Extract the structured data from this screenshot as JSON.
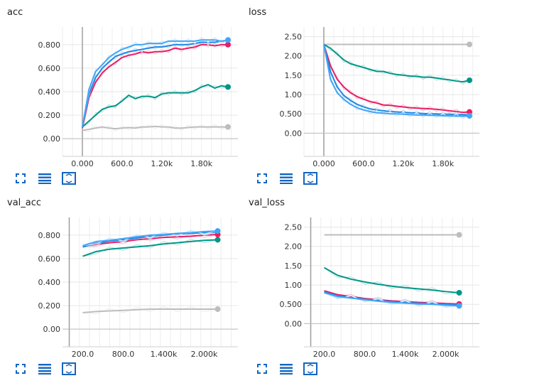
{
  "colors": {
    "teal": "#009688",
    "pink": "#e91e63",
    "blue_dark": "#1e88e5",
    "blue_mid": "#2196f3",
    "blue_light": "#42a5f5",
    "gray": "#bdbdbd",
    "tool_blue": "#1565c0"
  },
  "toolbar": {
    "expand_icon": "fullscreen-corners-icon",
    "data_icon": "list-lines-icon",
    "fit_icon": "fit-domain-icon"
  },
  "chart_data": [
    {
      "id": "acc",
      "type": "line",
      "title": "acc",
      "xlabel": "",
      "ylabel": "",
      "xlim": [
        -300,
        2350
      ],
      "ylim": [
        -0.15,
        0.95
      ],
      "xticks": [
        0,
        600,
        1200,
        1800
      ],
      "xtick_labels": [
        "0.000",
        "600.0",
        "1.20k",
        "1.80k"
      ],
      "yticks": [
        0,
        0.2,
        0.4,
        0.6,
        0.8
      ],
      "ytick_labels": [
        "0.00",
        "0.200",
        "0.400",
        "0.600",
        "0.800"
      ],
      "grid": true,
      "series": [
        {
          "color": "#bdbdbd",
          "x": [
            0,
            100,
            200,
            300,
            400,
            500,
            600,
            700,
            800,
            900,
            1000,
            1100,
            1200,
            1300,
            1400,
            1500,
            1600,
            1700,
            1800,
            1900,
            2000,
            2100,
            2200
          ],
          "y": [
            0.07,
            0.08,
            0.09,
            0.1,
            0.09,
            0.085,
            0.09,
            0.095,
            0.09,
            0.1,
            0.1,
            0.105,
            0.1,
            0.1,
            0.09,
            0.09,
            0.095,
            0.1,
            0.1,
            0.1,
            0.1,
            0.1,
            0.1
          ],
          "end_marker": true
        },
        {
          "color": "#009688",
          "x": [
            0,
            100,
            200,
            300,
            400,
            500,
            600,
            700,
            800,
            900,
            1000,
            1100,
            1200,
            1300,
            1400,
            1500,
            1600,
            1700,
            1800,
            1900,
            2000,
            2100,
            2200
          ],
          "y": [
            0.1,
            0.15,
            0.2,
            0.25,
            0.27,
            0.28,
            0.32,
            0.37,
            0.34,
            0.36,
            0.36,
            0.35,
            0.38,
            0.39,
            0.39,
            0.39,
            0.39,
            0.41,
            0.44,
            0.46,
            0.43,
            0.45,
            0.44
          ],
          "end_marker": true
        },
        {
          "color": "#e91e63",
          "x": [
            0,
            100,
            200,
            300,
            400,
            500,
            600,
            700,
            800,
            900,
            1000,
            1100,
            1200,
            1300,
            1400,
            1500,
            1600,
            1700,
            1800,
            1900,
            2000,
            2100,
            2200
          ],
          "y": [
            0.09,
            0.35,
            0.48,
            0.56,
            0.61,
            0.65,
            0.69,
            0.71,
            0.72,
            0.74,
            0.73,
            0.74,
            0.74,
            0.75,
            0.77,
            0.76,
            0.77,
            0.78,
            0.8,
            0.8,
            0.79,
            0.8,
            0.8
          ],
          "end_marker": true
        },
        {
          "color": "#1e88e5",
          "x": [
            0,
            100,
            200,
            300,
            400,
            500,
            600,
            700,
            800,
            900,
            1000,
            1100,
            1200,
            1300,
            1400,
            1500,
            1600,
            1700,
            1800,
            1900,
            2000,
            2100,
            2200
          ],
          "y": [
            0.1,
            0.38,
            0.52,
            0.6,
            0.65,
            0.7,
            0.72,
            0.74,
            0.75,
            0.76,
            0.77,
            0.78,
            0.78,
            0.79,
            0.8,
            0.8,
            0.8,
            0.81,
            0.82,
            0.82,
            0.82,
            0.83,
            0.83
          ],
          "end_marker": false
        },
        {
          "color": "#42a5f5",
          "x": [
            0,
            100,
            200,
            300,
            400,
            500,
            600,
            700,
            800,
            900,
            1000,
            1100,
            1200,
            1300,
            1400,
            1500,
            1600,
            1700,
            1800,
            1900,
            2000,
            2100,
            2200
          ],
          "y": [
            0.1,
            0.42,
            0.57,
            0.63,
            0.69,
            0.73,
            0.76,
            0.78,
            0.8,
            0.8,
            0.81,
            0.81,
            0.81,
            0.83,
            0.83,
            0.83,
            0.83,
            0.83,
            0.84,
            0.84,
            0.84,
            0.83,
            0.84
          ],
          "end_marker": true
        }
      ]
    },
    {
      "id": "loss",
      "type": "line",
      "title": "loss",
      "xlabel": "",
      "ylabel": "",
      "xlim": [
        -300,
        2350
      ],
      "ylim": [
        -0.6,
        2.75
      ],
      "xticks": [
        0,
        600,
        1200,
        1800
      ],
      "xtick_labels": [
        "0.000",
        "600.0",
        "1.20k",
        "1.80k"
      ],
      "yticks": [
        0,
        0.5,
        1,
        1.5,
        2,
        2.5
      ],
      "ytick_labels": [
        "0.00",
        "0.500",
        "1.00",
        "1.50",
        "2.00",
        "2.50"
      ],
      "grid": true,
      "series": [
        {
          "color": "#bdbdbd",
          "x": [
            0,
            2200
          ],
          "y": [
            2.3,
            2.3
          ],
          "end_marker": true
        },
        {
          "color": "#009688",
          "x": [
            0,
            100,
            200,
            300,
            400,
            500,
            600,
            700,
            800,
            900,
            1000,
            1100,
            1200,
            1300,
            1400,
            1500,
            1600,
            1700,
            1800,
            1900,
            2000,
            2100,
            2200
          ],
          "y": [
            2.3,
            2.2,
            2.05,
            1.9,
            1.8,
            1.75,
            1.7,
            1.65,
            1.6,
            1.6,
            1.55,
            1.52,
            1.5,
            1.48,
            1.47,
            1.45,
            1.45,
            1.43,
            1.4,
            1.38,
            1.35,
            1.33,
            1.37
          ],
          "end_marker": true
        },
        {
          "color": "#e91e63",
          "x": [
            0,
            100,
            200,
            300,
            400,
            500,
            600,
            700,
            800,
            900,
            1000,
            1100,
            1200,
            1300,
            1400,
            1500,
            1600,
            1700,
            1800,
            1900,
            2000,
            2100,
            2200
          ],
          "y": [
            2.3,
            1.75,
            1.4,
            1.2,
            1.05,
            0.95,
            0.88,
            0.82,
            0.78,
            0.73,
            0.72,
            0.7,
            0.68,
            0.66,
            0.65,
            0.64,
            0.63,
            0.62,
            0.6,
            0.58,
            0.56,
            0.54,
            0.55
          ],
          "end_marker": true
        },
        {
          "color": "#1e88e5",
          "x": [
            0,
            100,
            200,
            300,
            400,
            500,
            600,
            700,
            800,
            900,
            1000,
            1100,
            1200,
            1300,
            1400,
            1500,
            1600,
            1700,
            1800,
            1900,
            2000,
            2100,
            2200
          ],
          "y": [
            2.3,
            1.6,
            1.2,
            0.98,
            0.85,
            0.75,
            0.68,
            0.63,
            0.6,
            0.58,
            0.56,
            0.55,
            0.54,
            0.53,
            0.52,
            0.51,
            0.5,
            0.5,
            0.49,
            0.49,
            0.48,
            0.48,
            0.47
          ],
          "end_marker": false
        },
        {
          "color": "#42a5f5",
          "x": [
            0,
            100,
            200,
            300,
            400,
            500,
            600,
            700,
            800,
            900,
            1000,
            1100,
            1200,
            1300,
            1400,
            1500,
            1600,
            1700,
            1800,
            1900,
            2000,
            2100,
            2200
          ],
          "y": [
            2.3,
            1.4,
            1.05,
            0.88,
            0.75,
            0.66,
            0.6,
            0.56,
            0.53,
            0.52,
            0.5,
            0.5,
            0.49,
            0.48,
            0.47,
            0.47,
            0.46,
            0.46,
            0.45,
            0.45,
            0.44,
            0.44,
            0.45
          ],
          "end_marker": true
        }
      ]
    },
    {
      "id": "val_acc",
      "type": "line",
      "title": "val_acc",
      "xlabel": "",
      "ylabel": "",
      "xlim": [
        -100,
        2500
      ],
      "ylim": [
        -0.15,
        0.95
      ],
      "xticks": [
        200,
        800,
        1400,
        2000
      ],
      "xtick_labels": [
        "200.0",
        "800.0",
        "1.400k",
        "2.000k"
      ],
      "yticks": [
        0,
        0.2,
        0.4,
        0.6,
        0.8
      ],
      "ytick_labels": [
        "0.00",
        "0.200",
        "0.400",
        "0.600",
        "0.800"
      ],
      "grid": true,
      "series": [
        {
          "color": "#bdbdbd",
          "x": [
            200,
            400,
            600,
            800,
            1000,
            1200,
            1400,
            1600,
            1800,
            2000,
            2200
          ],
          "y": [
            0.14,
            0.15,
            0.155,
            0.16,
            0.165,
            0.17,
            0.17,
            0.17,
            0.17,
            0.17,
            0.17
          ],
          "end_marker": true
        },
        {
          "color": "#009688",
          "x": [
            200,
            400,
            600,
            800,
            1000,
            1200,
            1400,
            1600,
            1800,
            2000,
            2200
          ],
          "y": [
            0.62,
            0.66,
            0.68,
            0.69,
            0.7,
            0.71,
            0.725,
            0.735,
            0.745,
            0.755,
            0.76
          ],
          "end_marker": true
        },
        {
          "color": "#e91e63",
          "x": [
            200,
            400,
            600,
            800,
            1000,
            1200,
            1400,
            1600,
            1800,
            2000,
            2200
          ],
          "y": [
            0.7,
            0.72,
            0.735,
            0.745,
            0.76,
            0.77,
            0.78,
            0.785,
            0.79,
            0.8,
            0.805
          ],
          "end_marker": true
        },
        {
          "color": "#1e88e5",
          "x": [
            200,
            400,
            600,
            800,
            1000,
            1200,
            1400,
            1600,
            1800,
            2000,
            2200
          ],
          "y": [
            0.7,
            0.73,
            0.75,
            0.76,
            0.775,
            0.79,
            0.8,
            0.81,
            0.815,
            0.82,
            0.825
          ],
          "end_marker": false
        },
        {
          "color": "#42a5f5",
          "x": [
            200,
            400,
            600,
            800,
            1000,
            1200,
            1400,
            1600,
            1800,
            2000,
            2200
          ],
          "y": [
            0.71,
            0.745,
            0.755,
            0.77,
            0.785,
            0.8,
            0.805,
            0.815,
            0.82,
            0.83,
            0.835
          ],
          "end_marker": true
        }
      ]
    },
    {
      "id": "val_loss",
      "type": "line",
      "title": "val_loss",
      "xlabel": "",
      "ylabel": "",
      "xlim": [
        -100,
        2500
      ],
      "ylim": [
        -0.6,
        2.75
      ],
      "xticks": [
        200,
        800,
        1400,
        2000
      ],
      "xtick_labels": [
        "200.0",
        "800.0",
        "1.400k",
        "2.000k"
      ],
      "yticks": [
        0,
        0.5,
        1,
        1.5,
        2,
        2.5
      ],
      "ytick_labels": [
        "0.00",
        "0.500",
        "1.00",
        "1.50",
        "2.00",
        "2.50"
      ],
      "grid": true,
      "series": [
        {
          "color": "#bdbdbd",
          "x": [
            200,
            2200
          ],
          "y": [
            2.3,
            2.3
          ],
          "end_marker": true
        },
        {
          "color": "#009688",
          "x": [
            200,
            400,
            600,
            800,
            1000,
            1200,
            1400,
            1600,
            1800,
            2000,
            2200
          ],
          "y": [
            1.45,
            1.25,
            1.15,
            1.08,
            1.02,
            0.97,
            0.93,
            0.9,
            0.87,
            0.83,
            0.8
          ],
          "end_marker": true
        },
        {
          "color": "#e91e63",
          "x": [
            200,
            400,
            600,
            800,
            1000,
            1200,
            1400,
            1600,
            1800,
            2000,
            2200
          ],
          "y": [
            0.85,
            0.75,
            0.7,
            0.65,
            0.62,
            0.59,
            0.57,
            0.55,
            0.54,
            0.52,
            0.51
          ],
          "end_marker": true
        },
        {
          "color": "#1e88e5",
          "x": [
            200,
            400,
            600,
            800,
            1000,
            1200,
            1400,
            1600,
            1800,
            2000,
            2200
          ],
          "y": [
            0.82,
            0.72,
            0.67,
            0.63,
            0.6,
            0.57,
            0.55,
            0.53,
            0.52,
            0.5,
            0.49
          ],
          "end_marker": false
        },
        {
          "color": "#42a5f5",
          "x": [
            200,
            400,
            600,
            800,
            1000,
            1200,
            1400,
            1600,
            1800,
            2000,
            2200
          ],
          "y": [
            0.8,
            0.7,
            0.66,
            0.62,
            0.58,
            0.55,
            0.53,
            0.51,
            0.5,
            0.48,
            0.46
          ],
          "end_marker": true
        }
      ]
    }
  ]
}
